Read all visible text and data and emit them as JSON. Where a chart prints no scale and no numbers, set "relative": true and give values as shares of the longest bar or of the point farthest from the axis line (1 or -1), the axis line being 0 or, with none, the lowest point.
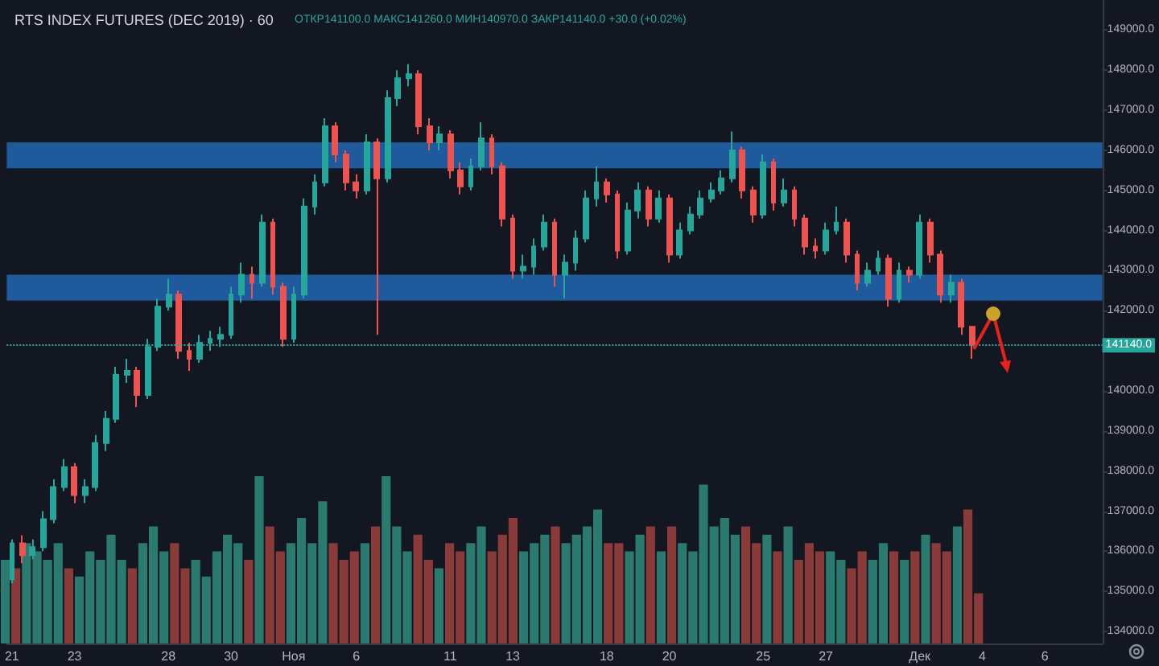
{
  "chart_data": [
    {
      "type": "candlestick",
      "title": "RTS INDEX FUTURES (DEC 2019) · 60",
      "subtitle": "ОТКР141100.0 МАКС141260.0 МИН140970.0 ЗАКР141140.0 +30.0 (+0.02%)",
      "categories": [
        "21",
        null,
        null,
        null,
        null,
        null,
        "23",
        null,
        null,
        null,
        null,
        null,
        null,
        null,
        null,
        "28",
        null,
        null,
        null,
        null,
        null,
        "30",
        null,
        null,
        null,
        null,
        null,
        "Ноя",
        null,
        null,
        null,
        null,
        null,
        "6",
        null,
        null,
        null,
        null,
        null,
        null,
        null,
        null,
        "11",
        null,
        null,
        null,
        null,
        null,
        "13",
        null,
        null,
        null,
        null,
        null,
        null,
        null,
        null,
        "18",
        null,
        null,
        null,
        null,
        null,
        "20",
        null,
        null,
        null,
        null,
        null,
        null,
        null,
        null,
        "25",
        null,
        null,
        null,
        null,
        null,
        "27",
        null,
        null,
        null,
        null,
        null,
        null,
        null,
        null,
        "Дек",
        null,
        null,
        null,
        null,
        null,
        "4",
        null,
        null,
        null,
        null,
        null,
        "6",
        null,
        null,
        null,
        null,
        null
      ],
      "ohlc": [
        [
          135300,
          136300,
          135200,
          136200
        ],
        [
          136200,
          136400,
          135700,
          135900
        ],
        [
          135900,
          136300,
          135800,
          136100
        ],
        [
          136100,
          137000,
          136000,
          136800
        ],
        [
          136800,
          137800,
          136700,
          137600
        ],
        [
          137600,
          138300,
          137500,
          138100
        ],
        [
          138100,
          138200,
          137200,
          137400
        ],
        [
          137400,
          137800,
          137200,
          137600
        ],
        [
          137600,
          138900,
          137500,
          138700
        ],
        [
          138700,
          139500,
          138500,
          139300
        ],
        [
          139300,
          140600,
          139200,
          140400
        ],
        [
          140400,
          140800,
          140200,
          140500
        ],
        [
          140500,
          140600,
          139600,
          139900
        ],
        [
          139900,
          141300,
          139800,
          141100
        ],
        [
          141100,
          142300,
          141000,
          142100
        ],
        [
          142100,
          142800,
          142000,
          142400
        ],
        [
          142400,
          142500,
          140800,
          141000
        ],
        [
          141000,
          141200,
          140500,
          140800
        ],
        [
          140800,
          141400,
          140700,
          141200
        ],
        [
          141200,
          141500,
          141000,
          141300
        ],
        [
          141300,
          141600,
          141100,
          141400
        ],
        [
          141400,
          142600,
          141300,
          142400
        ],
        [
          142400,
          143200,
          142200,
          142900
        ],
        [
          142900,
          143100,
          142300,
          142700
        ],
        [
          142700,
          144400,
          142600,
          144200
        ],
        [
          144200,
          144300,
          142400,
          142600
        ],
        [
          142600,
          142700,
          141100,
          141300
        ],
        [
          141300,
          142600,
          141200,
          142400
        ],
        [
          142400,
          144800,
          142300,
          144600
        ],
        [
          144600,
          145400,
          144400,
          145200
        ],
        [
          145200,
          146800,
          145100,
          146600
        ],
        [
          146600,
          146700,
          145700,
          145900
        ],
        [
          145900,
          146000,
          145000,
          145200
        ],
        [
          145200,
          145400,
          144800,
          145000
        ],
        [
          145000,
          146400,
          144900,
          146200
        ],
        [
          146200,
          146300,
          141400,
          145300
        ],
        [
          145300,
          147500,
          145200,
          147300
        ],
        [
          147300,
          148000,
          147100,
          147800
        ],
        [
          147800,
          148150,
          147600,
          147900
        ],
        [
          147900,
          148000,
          146400,
          146600
        ],
        [
          146600,
          146800,
          146000,
          146200
        ],
        [
          146200,
          146600,
          146000,
          146400
        ],
        [
          146400,
          146500,
          145300,
          145500
        ],
        [
          145500,
          145700,
          144900,
          145100
        ],
        [
          145100,
          145800,
          145000,
          145600
        ],
        [
          145600,
          146700,
          145500,
          146300
        ],
        [
          146300,
          146400,
          145400,
          145600
        ],
        [
          145600,
          145700,
          144100,
          144300
        ],
        [
          144300,
          144400,
          142800,
          143000
        ],
        [
          143000,
          143400,
          142800,
          143100
        ],
        [
          143100,
          143800,
          142900,
          143600
        ],
        [
          143600,
          144400,
          143500,
          144200
        ],
        [
          144200,
          144300,
          142600,
          142900
        ],
        [
          142900,
          143400,
          142300,
          143200
        ],
        [
          143200,
          144000,
          143000,
          143800
        ],
        [
          143800,
          145000,
          143700,
          144800
        ],
        [
          144800,
          145600,
          144600,
          145200
        ],
        [
          145200,
          145300,
          144700,
          144900
        ],
        [
          144900,
          145000,
          143300,
          143500
        ],
        [
          143500,
          144700,
          143400,
          144500
        ],
        [
          144500,
          145200,
          144300,
          145000
        ],
        [
          145000,
          145100,
          144100,
          144300
        ],
        [
          144300,
          145000,
          144200,
          144800
        ],
        [
          144800,
          144900,
          143200,
          143400
        ],
        [
          143400,
          144200,
          143300,
          144000
        ],
        [
          144000,
          144600,
          143900,
          144400
        ],
        [
          144400,
          145000,
          144300,
          144800
        ],
        [
          144800,
          145200,
          144700,
          145000
        ],
        [
          145000,
          145500,
          144900,
          145300
        ],
        [
          145300,
          146470,
          145200,
          146000
        ],
        [
          146000,
          146100,
          144800,
          145000
        ],
        [
          145000,
          145100,
          144200,
          144400
        ],
        [
          144400,
          145900,
          144300,
          145700
        ],
        [
          145700,
          145800,
          144500,
          144700
        ],
        [
          144700,
          145300,
          144600,
          145000
        ],
        [
          145000,
          145100,
          144100,
          144300
        ],
        [
          144300,
          144400,
          143400,
          143600
        ],
        [
          143600,
          143800,
          143300,
          143500
        ],
        [
          143500,
          144200,
          143400,
          144000
        ],
        [
          144000,
          144600,
          143900,
          144200
        ],
        [
          144200,
          144300,
          143200,
          143400
        ],
        [
          143400,
          143500,
          142500,
          142700
        ],
        [
          142700,
          143200,
          142600,
          143000
        ],
        [
          143000,
          143500,
          142900,
          143300
        ],
        [
          143300,
          143400,
          142100,
          142300
        ],
        [
          142300,
          143200,
          142200,
          143000
        ],
        [
          143000,
          143100,
          142700,
          142900
        ],
        [
          142900,
          144400,
          142800,
          144200
        ],
        [
          144200,
          144300,
          143200,
          143400
        ],
        [
          143400,
          143500,
          142200,
          142400
        ],
        [
          142400,
          142900,
          142200,
          142700
        ],
        [
          142700,
          142800,
          141400,
          141600
        ],
        [
          141600,
          141600,
          140800,
          141140
        ],
        null,
        null,
        null,
        null,
        null,
        null,
        null,
        null,
        null,
        null,
        null,
        null
      ],
      "ylim": [
        133700,
        149750
      ],
      "yticks": [
        {
          "value": 134000,
          "label": "134000.0"
        },
        {
          "value": 135000,
          "label": "135000.0"
        },
        {
          "value": 136000,
          "label": "136000.0"
        },
        {
          "value": 137000,
          "label": "137000.0"
        },
        {
          "value": 138000,
          "label": "138000.0"
        },
        {
          "value": 139000,
          "label": "139000.0"
        },
        {
          "value": 140000,
          "label": "140000.0"
        },
        {
          "value": 141000,
          "label": null
        },
        {
          "value": 142000,
          "label": "142000.0"
        },
        {
          "value": 143000,
          "label": "143000.0"
        },
        {
          "value": 144000,
          "label": "144000.0"
        },
        {
          "value": 145000,
          "label": "145000.0"
        },
        {
          "value": 146000,
          "label": "146000.0"
        },
        {
          "value": 147000,
          "label": "147000.0"
        },
        {
          "value": 148000,
          "label": "148000.0"
        },
        {
          "value": 149000,
          "label": "149000.0"
        }
      ],
      "ref_lines": [
        {
          "axis": "y",
          "value": 141140,
          "label": "141140.0",
          "color": "#26a69a",
          "line_style": "dotted"
        }
      ],
      "bands": [
        {
          "axis": "y",
          "from": 145550,
          "to": 146200,
          "color": "#1e5a9c"
        },
        {
          "axis": "y",
          "from": 142250,
          "to": 142900,
          "color": "#1e5a9c"
        }
      ]
    },
    {
      "type": "bar",
      "relative": true,
      "tick_labels": false,
      "categories": [
        null,
        null,
        null,
        null,
        null,
        null,
        null,
        null,
        null,
        null,
        null,
        null,
        null,
        null,
        null,
        null,
        null,
        null,
        null,
        null,
        null,
        null,
        null,
        null,
        null,
        null,
        null,
        null,
        null,
        null,
        null,
        null,
        null,
        null,
        null,
        null,
        null,
        null,
        null,
        null,
        null,
        null,
        null,
        null,
        null,
        null,
        null,
        null,
        null,
        null,
        null,
        null,
        null,
        null,
        null,
        null,
        null,
        null,
        null,
        null,
        null,
        null,
        null,
        null,
        null,
        null,
        null,
        null,
        null,
        null,
        null,
        null,
        null,
        null,
        null,
        null,
        null,
        null,
        null,
        null,
        null,
        null,
        null,
        null,
        null,
        null,
        null,
        null,
        null,
        null,
        null,
        null,
        null,
        null,
        null,
        null,
        null,
        null,
        null,
        null,
        null,
        null,
        null,
        null,
        null
      ],
      "values": [
        0.5,
        0.45,
        0.6,
        0.55,
        0.5,
        0.6,
        0.45,
        0.4,
        0.55,
        0.5,
        0.65,
        0.5,
        0.45,
        0.6,
        0.7,
        0.55,
        0.6,
        0.45,
        0.5,
        0.4,
        0.55,
        0.65,
        0.6,
        0.5,
        1.0,
        0.7,
        0.55,
        0.6,
        0.75,
        0.6,
        0.85,
        0.6,
        0.5,
        0.55,
        0.6,
        0.7,
        1.0,
        0.7,
        0.55,
        0.65,
        0.5,
        0.45,
        0.6,
        0.55,
        0.6,
        0.7,
        0.55,
        0.65,
        0.75,
        0.55,
        0.6,
        0.65,
        0.7,
        0.6,
        0.65,
        0.7,
        0.8,
        0.6,
        0.6,
        0.55,
        0.65,
        0.7,
        0.55,
        0.7,
        0.6,
        0.55,
        0.95,
        0.7,
        0.75,
        0.65,
        0.7,
        0.6,
        0.65,
        0.55,
        0.7,
        0.5,
        0.6,
        0.55,
        0.55,
        0.5,
        0.45,
        0.55,
        0.5,
        0.6,
        0.55,
        0.5,
        0.55,
        0.65,
        0.6,
        0.55,
        0.7,
        0.8,
        0.3,
        null,
        null,
        null,
        null,
        null,
        null,
        null,
        null,
        null,
        null,
        null,
        null
      ],
      "colors": [
        "#2a7a70",
        "#8b3a3a",
        "#2a7a70",
        "#2a7a70",
        "#2a7a70",
        "#2a7a70",
        "#8b3a3a",
        "#2a7a70",
        "#2a7a70",
        "#2a7a70",
        "#2a7a70",
        "#2a7a70",
        "#8b3a3a",
        "#2a7a70",
        "#2a7a70",
        "#2a7a70",
        "#8b3a3a",
        "#8b3a3a",
        "#2a7a70",
        "#2a7a70",
        "#2a7a70",
        "#2a7a70",
        "#2a7a70",
        "#8b3a3a",
        "#2a7a70",
        "#8b3a3a",
        "#8b3a3a",
        "#2a7a70",
        "#2a7a70",
        "#2a7a70",
        "#2a7a70",
        "#8b3a3a",
        "#8b3a3a",
        "#8b3a3a",
        "#2a7a70",
        "#8b3a3a",
        "#2a7a70",
        "#2a7a70",
        "#2a7a70",
        "#8b3a3a",
        "#8b3a3a",
        "#2a7a70",
        "#8b3a3a",
        "#8b3a3a",
        "#2a7a70",
        "#2a7a70",
        "#8b3a3a",
        "#8b3a3a",
        "#8b3a3a",
        "#2a7a70",
        "#2a7a70",
        "#2a7a70",
        "#8b3a3a",
        "#2a7a70",
        "#2a7a70",
        "#2a7a70",
        "#2a7a70",
        "#8b3a3a",
        "#8b3a3a",
        "#2a7a70",
        "#2a7a70",
        "#8b3a3a",
        "#2a7a70",
        "#8b3a3a",
        "#2a7a70",
        "#2a7a70",
        "#2a7a70",
        "#2a7a70",
        "#2a7a70",
        "#2a7a70",
        "#8b3a3a",
        "#8b3a3a",
        "#2a7a70",
        "#8b3a3a",
        "#2a7a70",
        "#8b3a3a",
        "#8b3a3a",
        "#8b3a3a",
        "#2a7a70",
        "#2a7a70",
        "#8b3a3a",
        "#8b3a3a",
        "#2a7a70",
        "#2a7a70",
        "#8b3a3a",
        "#2a7a70",
        "#8b3a3a",
        "#2a7a70",
        "#8b3a3a",
        "#8b3a3a",
        "#2a7a70",
        "#8b3a3a",
        "#8b3a3a",
        null,
        null,
        null,
        null,
        null,
        null,
        null,
        null,
        null,
        null,
        null,
        null
      ]
    }
  ]
}
